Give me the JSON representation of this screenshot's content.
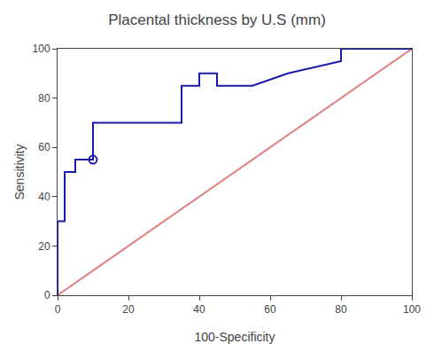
{
  "chart_data": {
    "type": "line",
    "title": "Placental thickness by U.S (mm)",
    "xlabel": "100-Specificity",
    "ylabel": "Sensitivity",
    "series": [
      {
        "type": "line",
        "color": "#e08080",
        "x": [
          0,
          100
        ],
        "values": [
          0,
          100
        ]
      },
      {
        "type": "line",
        "color": "#1a1aaa",
        "x": [
          0,
          0,
          2,
          2,
          5,
          5,
          10,
          10,
          35,
          35,
          40,
          40,
          45,
          45,
          55,
          65,
          65,
          80,
          80,
          100,
          100
        ],
        "values": [
          0,
          30,
          30,
          50,
          50,
          55,
          55,
          70,
          70,
          85,
          85,
          90,
          90,
          85,
          85,
          90,
          90,
          95,
          100,
          100,
          100
        ]
      },
      {
        "type": "scatter",
        "marker": "circle-open",
        "color": "#1a1aaa",
        "x": [
          10
        ],
        "values": [
          55
        ]
      }
    ],
    "xlim": [
      0,
      100
    ],
    "ylim": [
      0,
      100
    ],
    "xticks": [
      0,
      20,
      40,
      60,
      80,
      100
    ],
    "yticks": [
      0,
      20,
      40,
      60,
      80,
      100
    ],
    "grid": false
  }
}
